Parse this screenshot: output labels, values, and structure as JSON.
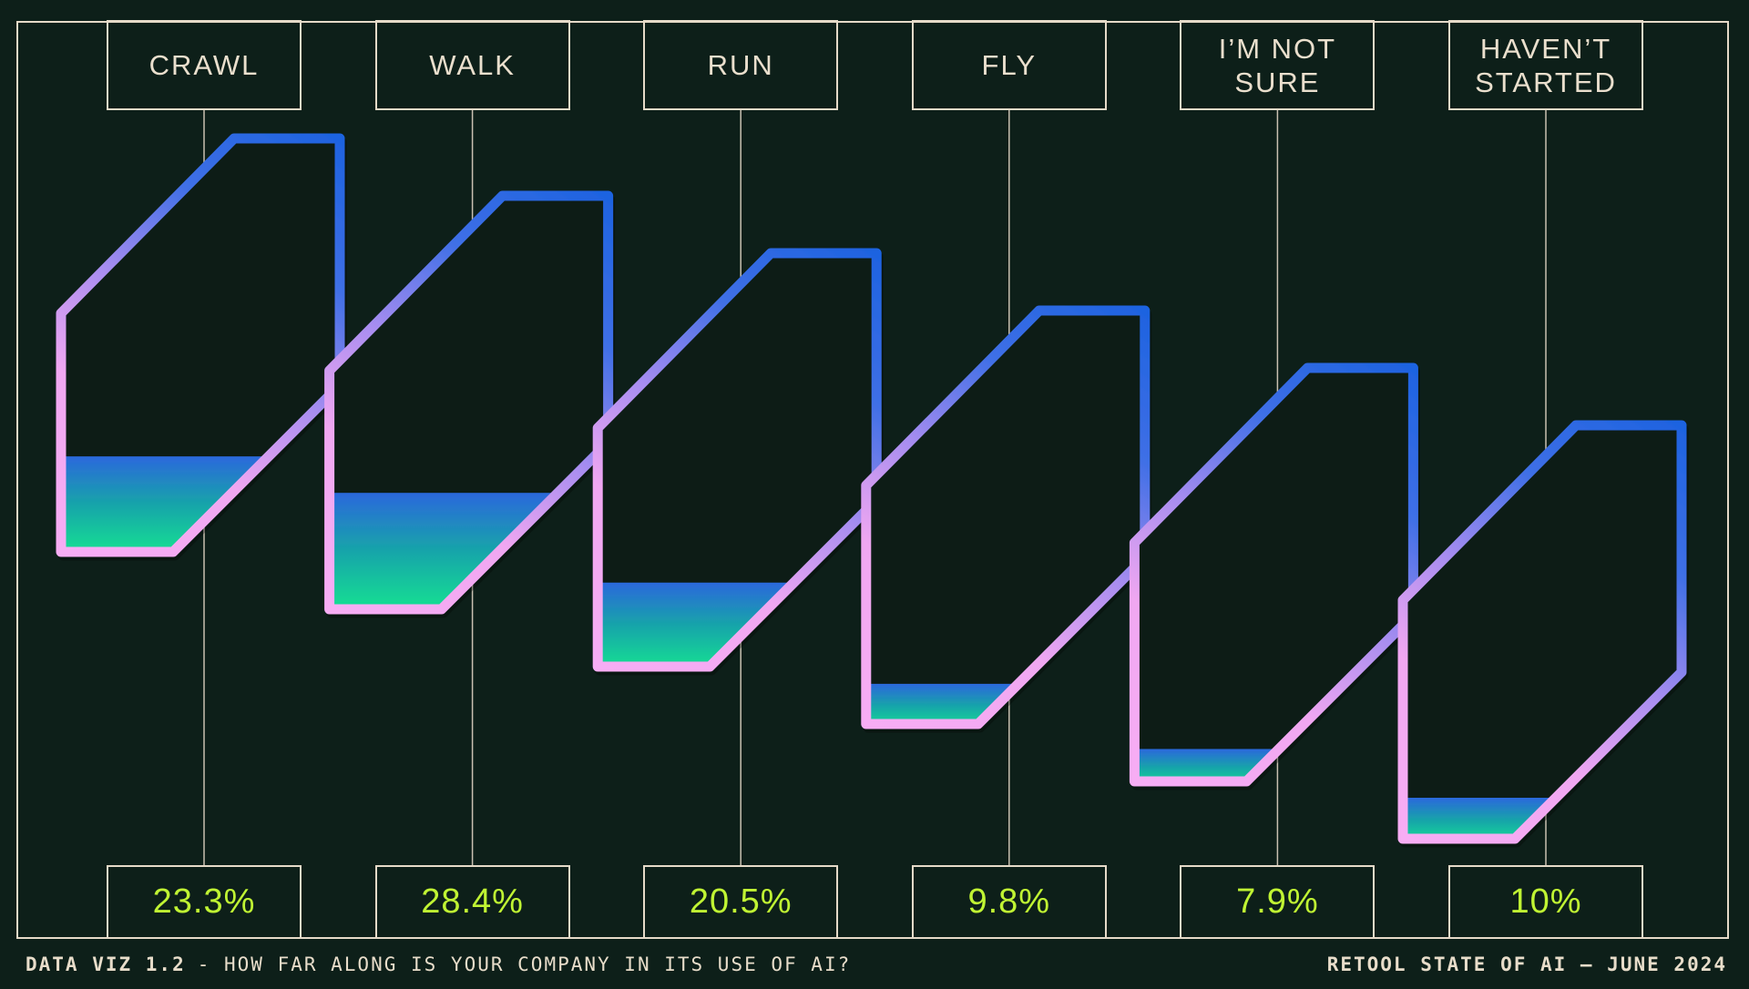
{
  "chart_data": {
    "type": "bar",
    "title": "HOW FAR ALONG IS YOUR COMPANY IN ITS USE OF AI?",
    "categories": [
      "CRAWL",
      "WALK",
      "RUN",
      "FLY",
      "I’M NOT SURE",
      "HAVEN’T STARTED"
    ],
    "values": [
      23.3,
      28.4,
      20.5,
      9.8,
      7.9,
      10
    ],
    "value_labels": [
      "23.3%",
      "28.4%",
      "20.5%",
      "9.8%",
      "7.9%",
      "10%"
    ],
    "unit": "%",
    "legend": "none",
    "style_note": "slanted tube gauges filled proportionally to value"
  },
  "footer": {
    "series_label": "DATA VIZ 1.2",
    "question": "- HOW FAR ALONG IS YOUR COMPANY IN ITS USE OF AI?",
    "source": "RETOOL STATE OF AI — JUNE 2024"
  },
  "colors": {
    "background": "#0d1f19",
    "frame_color": "#e5dac8",
    "label_color": "#eadfcd",
    "value_color": "#c0f433",
    "footer_color": "#e8ddca",
    "axis_color": "#c9c0b1",
    "tube_pink": "#f7adf4",
    "tube_pink2": "#f0a7f1",
    "tube_purple": "#a78df0",
    "tube_blue2": "#3f6fe6",
    "tube_blue": "#1e63e0",
    "fill_top": "#2b68dc",
    "fill_mid": "#18a2ab",
    "fill_bottom": "#10e78f"
  }
}
